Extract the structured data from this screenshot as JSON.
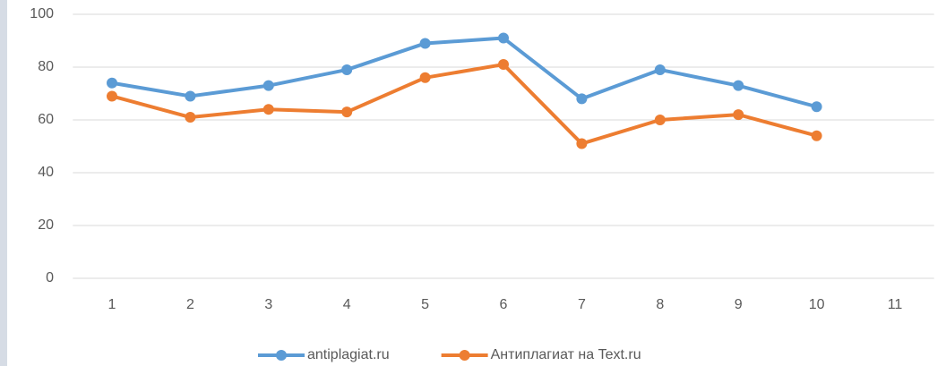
{
  "chart_data": {
    "type": "line",
    "categories": [
      "1",
      "2",
      "3",
      "4",
      "5",
      "6",
      "7",
      "8",
      "9",
      "10",
      "11"
    ],
    "series": [
      {
        "name": "antiplagiat.ru",
        "color": "#5b9bd5",
        "values": [
          74,
          69,
          73,
          79,
          89,
          91,
          68,
          79,
          73,
          65,
          null
        ]
      },
      {
        "name": "Антиплагиат на Text.ru",
        "color": "#ed7d31",
        "values": [
          69,
          61,
          64,
          63,
          76,
          81,
          51,
          60,
          62,
          54,
          null
        ]
      }
    ],
    "ylim": [
      0,
      100
    ],
    "yticks": [
      0,
      20,
      40,
      60,
      80,
      100
    ],
    "grid": true,
    "legend": "bottom"
  }
}
